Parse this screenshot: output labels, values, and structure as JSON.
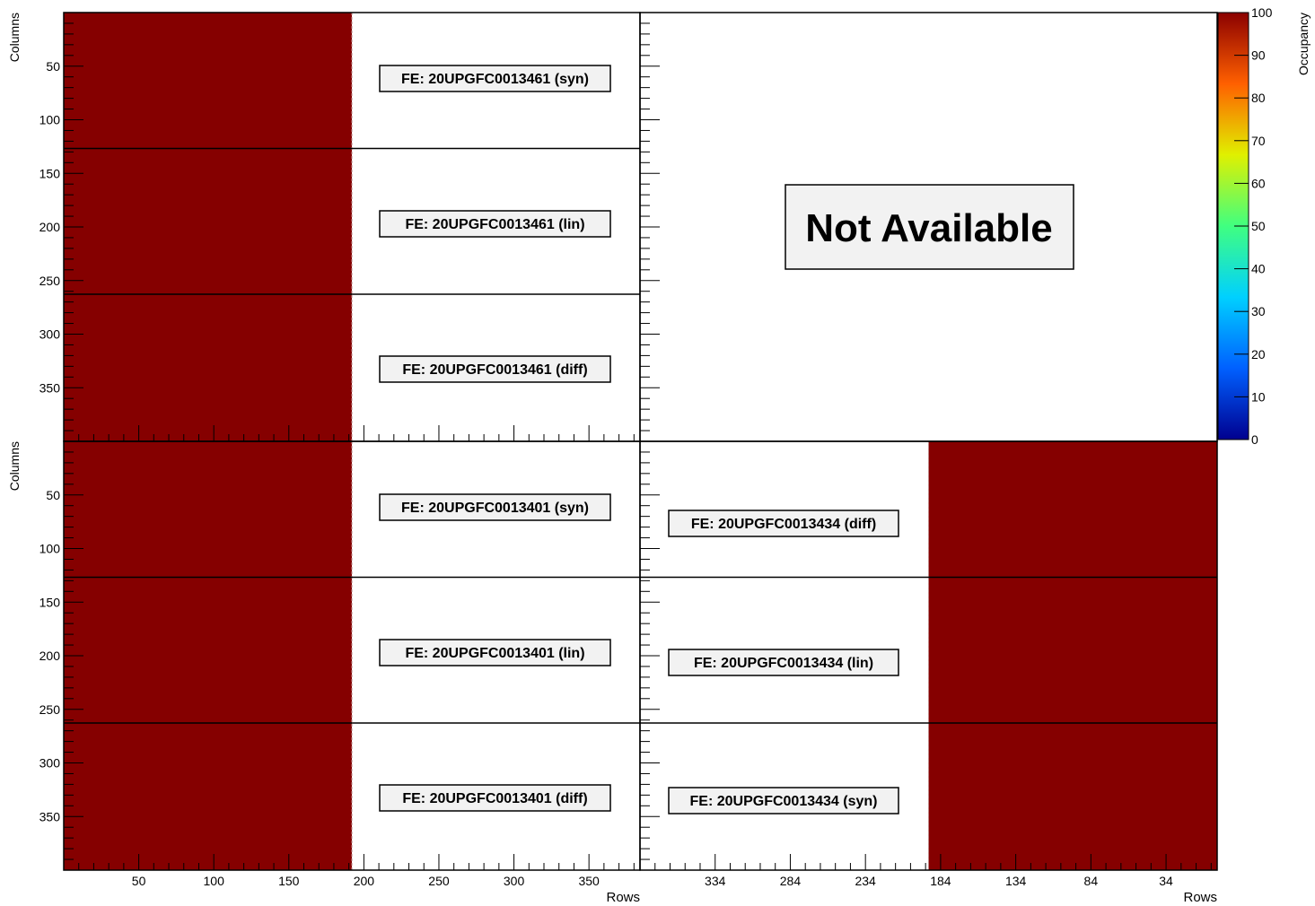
{
  "chart_data": {
    "type": "heatmap",
    "title": "",
    "xlabel": "Rows",
    "ylabel": "Columns",
    "colorbar": {
      "label": "Occupancy",
      "range": [
        0,
        100
      ],
      "ticks": [
        0,
        10,
        20,
        30,
        40,
        50,
        60,
        70,
        80,
        90,
        100
      ],
      "palette": [
        "#00008f",
        "#0060ff",
        "#00d0ff",
        "#40ff80",
        "#e0f000",
        "#ff6000",
        "#8b0000"
      ]
    },
    "fill_color": "#850000",
    "y_axis": {
      "range": [
        400,
        0
      ],
      "ticks": [
        50,
        100,
        150,
        200,
        250,
        300,
        350
      ]
    },
    "panels": [
      {
        "id": "top-left",
        "x_range": [
          0,
          384
        ],
        "x_ticks": [
          50,
          100,
          150,
          200,
          250,
          300,
          350
        ],
        "show_x_labels": false,
        "occupancy_x": [
          0,
          192
        ],
        "occupancy_value": 100,
        "fe_labels": [
          "FE: 20UPGFC0013461 (syn)",
          "FE: 20UPGFC0013461 (lin)",
          "FE: 20UPGFC0013461 (diff)"
        ]
      },
      {
        "id": "top-right",
        "available": false,
        "not_available_text": "Not Available"
      },
      {
        "id": "bottom-left",
        "x_range": [
          0,
          384
        ],
        "x_ticks": [
          50,
          100,
          150,
          200,
          250,
          300,
          350
        ],
        "show_x_labels": true,
        "occupancy_x": [
          0,
          192
        ],
        "occupancy_value": 100,
        "fe_labels": [
          "FE: 20UPGFC0013401 (syn)",
          "FE: 20UPGFC0013401 (lin)",
          "FE: 20UPGFC0013401 (diff)"
        ]
      },
      {
        "id": "bottom-right",
        "x_range": [
          384,
          0
        ],
        "x_ticks": [
          334,
          284,
          234,
          184,
          134,
          84,
          34
        ],
        "show_x_labels": true,
        "occupancy_x": [
          0,
          192
        ],
        "occupancy_value": 100,
        "fe_labels": [
          "FE: 20UPGFC0013434 (diff)",
          "FE: 20UPGFC0013434 (lin)",
          "FE: 20UPGFC0013434 (syn)"
        ]
      }
    ]
  }
}
